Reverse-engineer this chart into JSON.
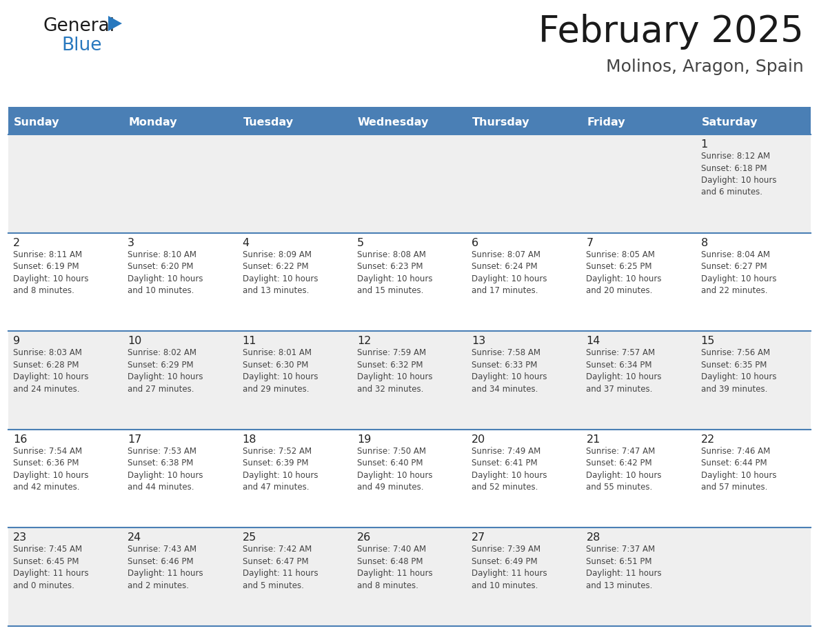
{
  "title": "February 2025",
  "subtitle": "Molinos, Aragon, Spain",
  "days_of_week": [
    "Sunday",
    "Monday",
    "Tuesday",
    "Wednesday",
    "Thursday",
    "Friday",
    "Saturday"
  ],
  "header_bg": "#4a7fb5",
  "header_text_color": "#FFFFFF",
  "row_bg_gray": "#EFEFEF",
  "row_bg_white": "#FFFFFF",
  "separator_color": "#4a7fb5",
  "title_color": "#1a1a1a",
  "subtitle_color": "#444444",
  "day_number_color": "#222222",
  "info_color": "#444444",
  "logo_general_color": "#1a1a1a",
  "logo_blue_color": "#2878BE",
  "calendar": [
    [
      {
        "day": 0,
        "info": ""
      },
      {
        "day": 0,
        "info": ""
      },
      {
        "day": 0,
        "info": ""
      },
      {
        "day": 0,
        "info": ""
      },
      {
        "day": 0,
        "info": ""
      },
      {
        "day": 0,
        "info": ""
      },
      {
        "day": 1,
        "info": "Sunrise: 8:12 AM\nSunset: 6:18 PM\nDaylight: 10 hours\nand 6 minutes."
      }
    ],
    [
      {
        "day": 2,
        "info": "Sunrise: 8:11 AM\nSunset: 6:19 PM\nDaylight: 10 hours\nand 8 minutes."
      },
      {
        "day": 3,
        "info": "Sunrise: 8:10 AM\nSunset: 6:20 PM\nDaylight: 10 hours\nand 10 minutes."
      },
      {
        "day": 4,
        "info": "Sunrise: 8:09 AM\nSunset: 6:22 PM\nDaylight: 10 hours\nand 13 minutes."
      },
      {
        "day": 5,
        "info": "Sunrise: 8:08 AM\nSunset: 6:23 PM\nDaylight: 10 hours\nand 15 minutes."
      },
      {
        "day": 6,
        "info": "Sunrise: 8:07 AM\nSunset: 6:24 PM\nDaylight: 10 hours\nand 17 minutes."
      },
      {
        "day": 7,
        "info": "Sunrise: 8:05 AM\nSunset: 6:25 PM\nDaylight: 10 hours\nand 20 minutes."
      },
      {
        "day": 8,
        "info": "Sunrise: 8:04 AM\nSunset: 6:27 PM\nDaylight: 10 hours\nand 22 minutes."
      }
    ],
    [
      {
        "day": 9,
        "info": "Sunrise: 8:03 AM\nSunset: 6:28 PM\nDaylight: 10 hours\nand 24 minutes."
      },
      {
        "day": 10,
        "info": "Sunrise: 8:02 AM\nSunset: 6:29 PM\nDaylight: 10 hours\nand 27 minutes."
      },
      {
        "day": 11,
        "info": "Sunrise: 8:01 AM\nSunset: 6:30 PM\nDaylight: 10 hours\nand 29 minutes."
      },
      {
        "day": 12,
        "info": "Sunrise: 7:59 AM\nSunset: 6:32 PM\nDaylight: 10 hours\nand 32 minutes."
      },
      {
        "day": 13,
        "info": "Sunrise: 7:58 AM\nSunset: 6:33 PM\nDaylight: 10 hours\nand 34 minutes."
      },
      {
        "day": 14,
        "info": "Sunrise: 7:57 AM\nSunset: 6:34 PM\nDaylight: 10 hours\nand 37 minutes."
      },
      {
        "day": 15,
        "info": "Sunrise: 7:56 AM\nSunset: 6:35 PM\nDaylight: 10 hours\nand 39 minutes."
      }
    ],
    [
      {
        "day": 16,
        "info": "Sunrise: 7:54 AM\nSunset: 6:36 PM\nDaylight: 10 hours\nand 42 minutes."
      },
      {
        "day": 17,
        "info": "Sunrise: 7:53 AM\nSunset: 6:38 PM\nDaylight: 10 hours\nand 44 minutes."
      },
      {
        "day": 18,
        "info": "Sunrise: 7:52 AM\nSunset: 6:39 PM\nDaylight: 10 hours\nand 47 minutes."
      },
      {
        "day": 19,
        "info": "Sunrise: 7:50 AM\nSunset: 6:40 PM\nDaylight: 10 hours\nand 49 minutes."
      },
      {
        "day": 20,
        "info": "Sunrise: 7:49 AM\nSunset: 6:41 PM\nDaylight: 10 hours\nand 52 minutes."
      },
      {
        "day": 21,
        "info": "Sunrise: 7:47 AM\nSunset: 6:42 PM\nDaylight: 10 hours\nand 55 minutes."
      },
      {
        "day": 22,
        "info": "Sunrise: 7:46 AM\nSunset: 6:44 PM\nDaylight: 10 hours\nand 57 minutes."
      }
    ],
    [
      {
        "day": 23,
        "info": "Sunrise: 7:45 AM\nSunset: 6:45 PM\nDaylight: 11 hours\nand 0 minutes."
      },
      {
        "day": 24,
        "info": "Sunrise: 7:43 AM\nSunset: 6:46 PM\nDaylight: 11 hours\nand 2 minutes."
      },
      {
        "day": 25,
        "info": "Sunrise: 7:42 AM\nSunset: 6:47 PM\nDaylight: 11 hours\nand 5 minutes."
      },
      {
        "day": 26,
        "info": "Sunrise: 7:40 AM\nSunset: 6:48 PM\nDaylight: 11 hours\nand 8 minutes."
      },
      {
        "day": 27,
        "info": "Sunrise: 7:39 AM\nSunset: 6:49 PM\nDaylight: 11 hours\nand 10 minutes."
      },
      {
        "day": 28,
        "info": "Sunrise: 7:37 AM\nSunset: 6:51 PM\nDaylight: 11 hours\nand 13 minutes."
      },
      {
        "day": 0,
        "info": ""
      }
    ]
  ],
  "fig_width": 11.88,
  "fig_height": 9.18
}
